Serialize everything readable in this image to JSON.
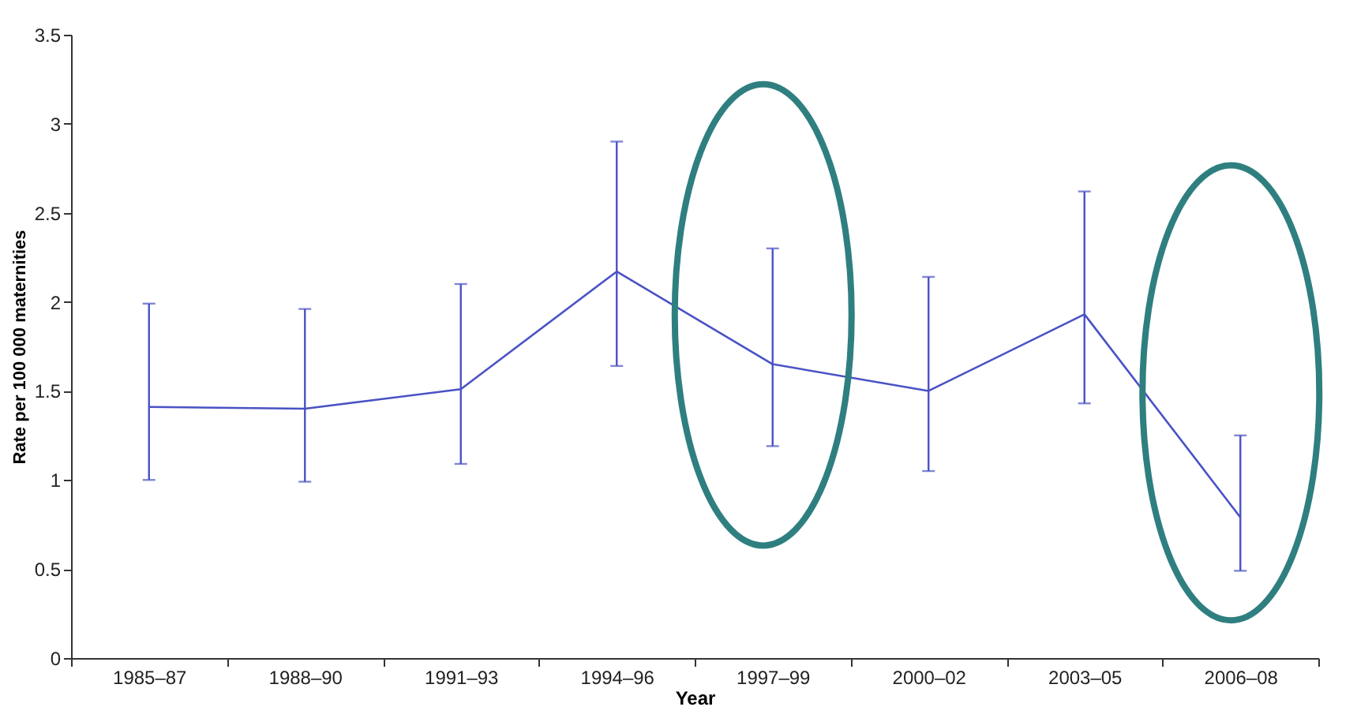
{
  "chart_data": {
    "type": "line",
    "xlabel": "Year",
    "ylabel": "Rate per 100 000 maternities",
    "categories": [
      "1985–87",
      "1988–90",
      "1991–93",
      "1994–96",
      "1997–99",
      "2000–02",
      "2003–05",
      "2006–08"
    ],
    "series": [
      {
        "color": "#4a52c4",
        "values": [
          1.41,
          1.4,
          1.51,
          2.17,
          1.65,
          1.5,
          1.93,
          0.79
        ],
        "errors": [
          [
            1.0,
            1.99
          ],
          [
            0.99,
            1.96
          ],
          [
            1.09,
            2.1
          ],
          [
            1.64,
            2.9
          ],
          [
            1.19,
            2.3
          ],
          [
            1.05,
            2.14
          ],
          [
            1.43,
            2.62
          ],
          [
            0.49,
            1.25
          ]
        ]
      }
    ],
    "ylim": [
      0,
      3.5
    ],
    "yticks": [
      0,
      0.5,
      1,
      1.5,
      2,
      2.5,
      3,
      3.5
    ],
    "grid": false,
    "marker": "none",
    "line_style": "solid"
  }
}
